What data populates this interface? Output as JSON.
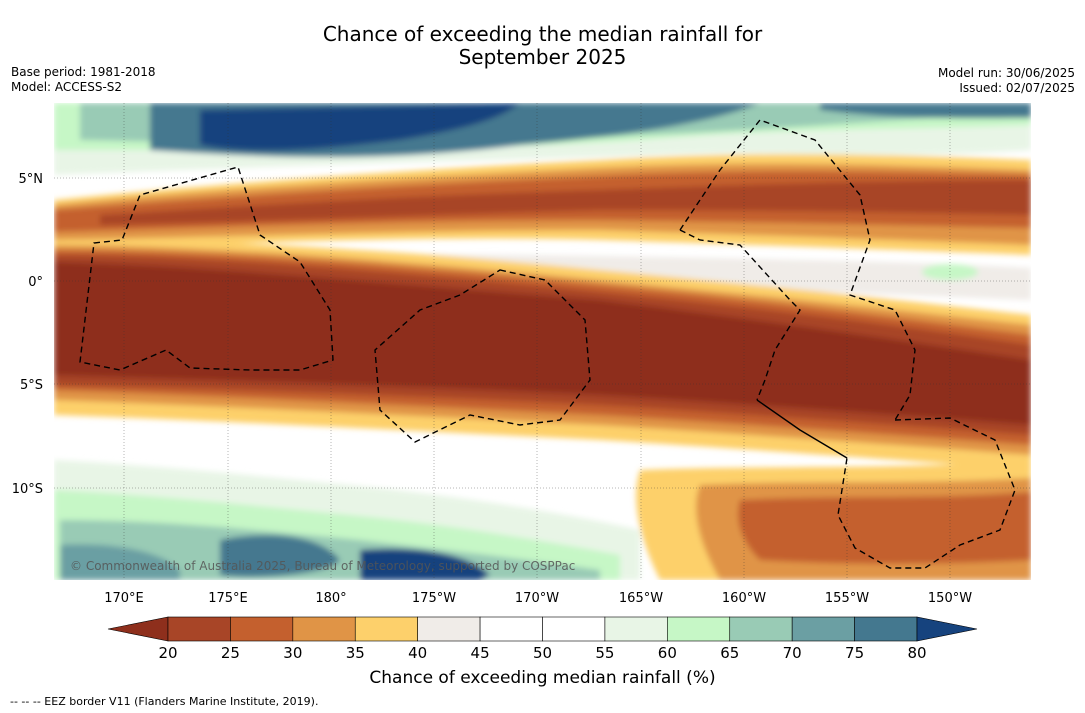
{
  "title": {
    "line1": "Chance of exceeding the median rainfall for",
    "line2": "September 2025"
  },
  "meta_left": {
    "base_period": "Base period: 1981-2018",
    "model": "Model: ACCESS-S2"
  },
  "meta_right": {
    "model_run": "Model run: 30/06/2025",
    "issued": "Issued: 02/07/2025"
  },
  "map": {
    "lat_labels": [
      "5°N",
      "0°",
      "5°S",
      "10°S"
    ],
    "lon_labels": [
      "170°E",
      "175°E",
      "180°",
      "175°W",
      "170°W",
      "165°W",
      "160°W",
      "155°W",
      "150°W"
    ],
    "copyright": "© Commonwealth of Australia 2025, Bureau of Meteorology, supported by COSPPac"
  },
  "colorbar": {
    "ticks": [
      "20",
      "25",
      "30",
      "35",
      "40",
      "45",
      "50",
      "55",
      "60",
      "65",
      "70",
      "75",
      "80"
    ],
    "colors": [
      "#8e2f1c",
      "#a84527",
      "#c4602e",
      "#e09446",
      "#fdd06b",
      "#f0ece8",
      "#ffffff",
      "#ffffff",
      "#e8f5e6",
      "#c6f7c6",
      "#99cbb5",
      "#6b9fa3",
      "#44788f",
      "#16437e"
    ],
    "label": "Chance of exceeding median rainfall (%)"
  },
  "legend_note": "--  --  -- EEZ border V11 (Flanders Marine Institute, 2019)."
}
